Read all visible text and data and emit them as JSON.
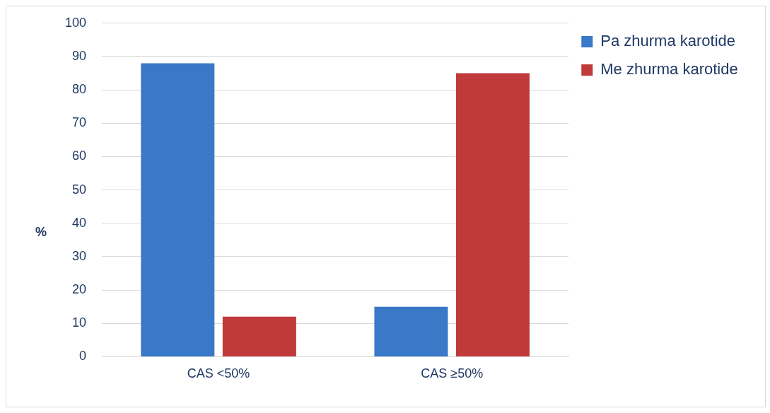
{
  "chart_data": {
    "type": "bar",
    "ylabel": "%",
    "categories": [
      "CAS <50%",
      "CAS ≥50%"
    ],
    "series": [
      {
        "name": "Pa zhurma karotide",
        "color": "#3a78c8",
        "values": [
          88,
          15
        ]
      },
      {
        "name": "Me zhurma karotide",
        "color": "#c0393b",
        "values": [
          12,
          85
        ]
      }
    ],
    "ylim": [
      0,
      100
    ],
    "yticks": [
      0,
      10,
      20,
      30,
      40,
      50,
      60,
      70,
      80,
      90,
      100
    ],
    "grid": "y",
    "legend": "top right"
  }
}
